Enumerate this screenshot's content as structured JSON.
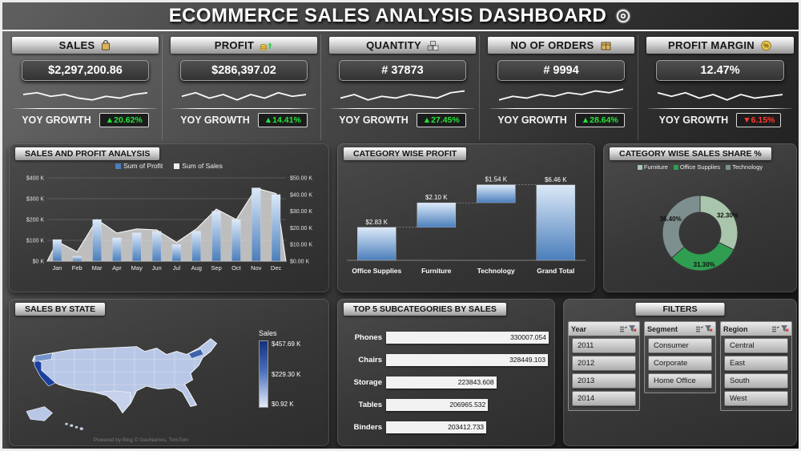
{
  "title": "ECOMMERCE SALES ANALYSIS DASHBOARD",
  "kpis": [
    {
      "label": "SALES",
      "icon": "shopping-bag",
      "value": "$2,297,200.86",
      "yoy_label": "YOY GROWTH",
      "yoy_value": "▲20.62%",
      "yoy_color": "#23e538",
      "spark": [
        5,
        6,
        4,
        5,
        3,
        2,
        4,
        3,
        5,
        6
      ]
    },
    {
      "label": "PROFIT",
      "icon": "money-bag",
      "value": "$286,397.02",
      "yoy_label": "YOY GROWTH",
      "yoy_value": "▲14.41%",
      "yoy_color": "#23e538",
      "spark": [
        4,
        6,
        3,
        5,
        2,
        5,
        3,
        6,
        4,
        5
      ]
    },
    {
      "label": "QUANTITY",
      "icon": "boxes",
      "value": "# 37873",
      "yoy_label": "YOY GROWTH",
      "yoy_value": "▲27.45%",
      "yoy_color": "#23e538",
      "spark": [
        3,
        5,
        2,
        4,
        3,
        5,
        4,
        3,
        6,
        7
      ]
    },
    {
      "label": "NO OF ORDERS",
      "icon": "package",
      "value": "# 9994",
      "yoy_label": "YOY GROWTH",
      "yoy_value": "▲28.64%",
      "yoy_color": "#23e538",
      "spark": [
        2,
        4,
        3,
        5,
        4,
        6,
        5,
        7,
        6,
        8
      ]
    },
    {
      "label": "PROFIT MARGIN",
      "icon": "coin-percent",
      "value": "12.47%",
      "yoy_label": "YOY GROWTH",
      "yoy_value": "▼6.15%",
      "yoy_color": "#ff3b30",
      "spark": [
        6,
        4,
        6,
        3,
        5,
        2,
        5,
        3,
        4,
        5
      ]
    }
  ],
  "filters": {
    "title": "FILTERS",
    "slicers": [
      {
        "name": "Year",
        "options": [
          "2011",
          "2012",
          "2013",
          "2014"
        ]
      },
      {
        "name": "Segment",
        "options": [
          "Consumer",
          "Corporate",
          "Home Office"
        ]
      },
      {
        "name": "Region",
        "options": [
          "Central",
          "East",
          "South",
          "West"
        ]
      }
    ]
  },
  "chart_data": [
    {
      "id": "sales_profit_monthly",
      "type": "combo",
      "title": "SALES AND PROFIT ANALYSIS",
      "categories": [
        "Jan",
        "Feb",
        "Mar",
        "Apr",
        "May",
        "Jun",
        "Jul",
        "Aug",
        "Sep",
        "Oct",
        "Nov",
        "Dec"
      ],
      "series": [
        {
          "name": "Sum of Profit",
          "chart": "bar",
          "axis": "right",
          "color": "#4a7ebb",
          "values": [
            13,
            3,
            25,
            14,
            17,
            18,
            10,
            18,
            30,
            25,
            44,
            40
          ],
          "unit": "K"
        },
        {
          "name": "Sum of Sales",
          "chart": "area",
          "axis": "left",
          "color": "#f0f0f0",
          "values": [
            95,
            45,
            200,
            135,
            155,
            150,
            90,
            155,
            250,
            200,
            350,
            325
          ],
          "unit": "K"
        }
      ],
      "left_axis": {
        "max": 400,
        "ticks": [
          "$0 K",
          "$100 K",
          "$200 K",
          "$300 K",
          "$400 K"
        ]
      },
      "right_axis": {
        "max": 50,
        "ticks": [
          "$0.00 K",
          "$10.00 K",
          "$20.00 K",
          "$30.00 K",
          "$40.00 K",
          "$50.00 K"
        ]
      }
    },
    {
      "id": "category_profit_waterfall",
      "type": "waterfall",
      "title": "CATEGORY WISE PROFIT",
      "categories": [
        "Office Supplies",
        "Furniture",
        "Technology",
        "Grand Total"
      ],
      "values": [
        2.83,
        2.1,
        1.54,
        6.46
      ],
      "labels": [
        "$2.83 K",
        "$2.10 K",
        "$1.54 K",
        "$6.46 K"
      ],
      "max": 7
    },
    {
      "id": "category_sales_share",
      "type": "donut",
      "title": "CATEGORY WISE SALES SHARE %",
      "slices": [
        {
          "name": "Furniture",
          "value": 32.3,
          "label": "32.30%",
          "color": "#a9c6ad"
        },
        {
          "name": "Office Supplies",
          "value": 31.3,
          "label": "31.30%",
          "color": "#2f9e50"
        },
        {
          "name": "Technology",
          "value": 36.4,
          "label": "36.40%",
          "color": "#7e8f8f"
        }
      ]
    },
    {
      "id": "top5_subcategories",
      "type": "bar-horizontal",
      "title": "TOP 5 SUBCATEGORIES BY SALES",
      "categories": [
        "Phones",
        "Chairs",
        "Storage",
        "Tables",
        "Binders"
      ],
      "values": [
        330007.054,
        328449.103,
        223843.608,
        206965.532,
        203412.733
      ],
      "labels": [
        "330007.054",
        "328449.103",
        "223843.608",
        "206965.532",
        "203412.733"
      ]
    },
    {
      "id": "sales_by_state",
      "type": "choropleth",
      "title": "SALES BY STATE",
      "legend_title": "Sales",
      "legend_ticks": [
        "$457.69 K",
        "$229.30 K",
        "$0.92 K"
      ],
      "attribution": "Powered by Bing © GeoNames, TomTom"
    }
  ]
}
